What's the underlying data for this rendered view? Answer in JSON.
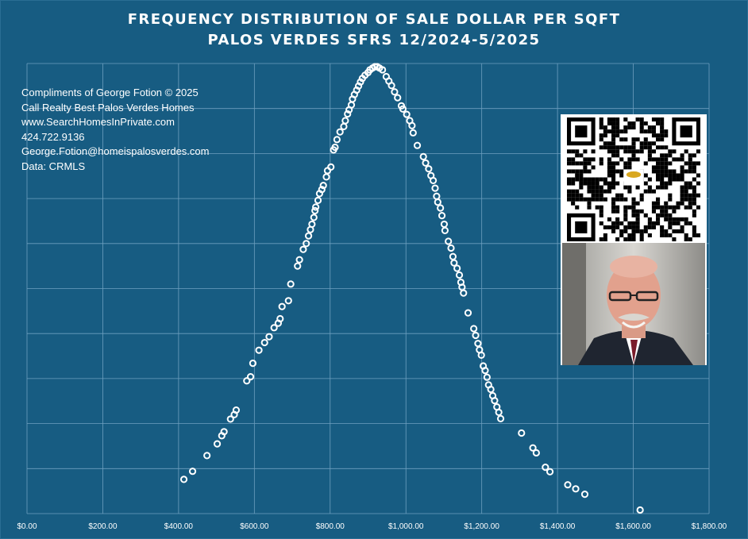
{
  "chart_data": {
    "type": "scatter",
    "title": "FREQUENCY DISTRIBUTION OF SALE DOLLAR PER SQFT",
    "subtitle": "PALOS VERDES SFRS 12/2024-5/2025",
    "xlim": [
      0,
      1800
    ],
    "ylim": [
      0,
      1
    ],
    "x_tick_labels": [
      "$0.00",
      "$200.00",
      "$400.00",
      "$600.00",
      "$800.00",
      "$1,000.00",
      "$1,200.00",
      "$1,400.00",
      "$1,600.00",
      "$1,800.00"
    ],
    "grid": true,
    "x": [
      414,
      437,
      475,
      502,
      514,
      520,
      537,
      547,
      552,
      580,
      590,
      596,
      612,
      627,
      639,
      652,
      663,
      668,
      673,
      690,
      696,
      714,
      719,
      729,
      737,
      743,
      748,
      752,
      757,
      760,
      762,
      768,
      772,
      778,
      782,
      790,
      793,
      802,
      809,
      813,
      818,
      826,
      836,
      840,
      846,
      850,
      856,
      859,
      864,
      870,
      875,
      880,
      885,
      892,
      900,
      905,
      912,
      918,
      924,
      930,
      938,
      948,
      955,
      962,
      970,
      978,
      988,
      992,
      1002,
      1010,
      1016,
      1019,
      1030,
      1046,
      1052,
      1060,
      1066,
      1072,
      1077,
      1081,
      1084,
      1091,
      1095,
      1101,
      1103,
      1112,
      1119,
      1124,
      1127,
      1135,
      1141,
      1145,
      1148,
      1152,
      1164,
      1179,
      1184,
      1190,
      1194,
      1199,
      1204,
      1209,
      1214,
      1218,
      1224,
      1229,
      1234,
      1240,
      1245,
      1250,
      1305,
      1335,
      1344,
      1368,
      1380,
      1427,
      1448,
      1472,
      1618
    ],
    "y": [
      0.076,
      0.094,
      0.129,
      0.155,
      0.173,
      0.182,
      0.21,
      0.22,
      0.23,
      0.295,
      0.304,
      0.334,
      0.363,
      0.38,
      0.393,
      0.413,
      0.423,
      0.433,
      0.46,
      0.473,
      0.51,
      0.55,
      0.564,
      0.587,
      0.6,
      0.617,
      0.631,
      0.643,
      0.658,
      0.673,
      0.681,
      0.696,
      0.711,
      0.72,
      0.729,
      0.748,
      0.762,
      0.77,
      0.808,
      0.814,
      0.831,
      0.848,
      0.86,
      0.873,
      0.888,
      0.897,
      0.908,
      0.921,
      0.931,
      0.941,
      0.95,
      0.959,
      0.967,
      0.974,
      0.98,
      0.986,
      0.99,
      0.993,
      0.993,
      0.99,
      0.986,
      0.971,
      0.961,
      0.951,
      0.937,
      0.924,
      0.906,
      0.899,
      0.887,
      0.873,
      0.862,
      0.846,
      0.818,
      0.793,
      0.779,
      0.766,
      0.751,
      0.74,
      0.723,
      0.705,
      0.692,
      0.679,
      0.662,
      0.643,
      0.629,
      0.605,
      0.59,
      0.571,
      0.557,
      0.545,
      0.53,
      0.514,
      0.503,
      0.49,
      0.446,
      0.411,
      0.396,
      0.378,
      0.364,
      0.352,
      0.328,
      0.318,
      0.303,
      0.286,
      0.276,
      0.262,
      0.251,
      0.237,
      0.225,
      0.211,
      0.179,
      0.146,
      0.135,
      0.103,
      0.093,
      0.064,
      0.055,
      0.043,
      0.008
    ]
  },
  "credits": {
    "line1": "Compliments of George Fotion © 2025",
    "line2": "Call Realty Best Palos Verdes Homes",
    "line3": "www.SearchHomesInPrivate.com",
    "line4": "424.722.9136",
    "line5": "George.Fotion@homeispalosverdes.com",
    "line6": "Data: CRMLS"
  },
  "images": {
    "qr": "qr-code",
    "portrait": "agent-portrait-photo"
  },
  "colors": {
    "background": "#175c82",
    "grid": "#6e9fbf",
    "marker": "#ffffff"
  }
}
